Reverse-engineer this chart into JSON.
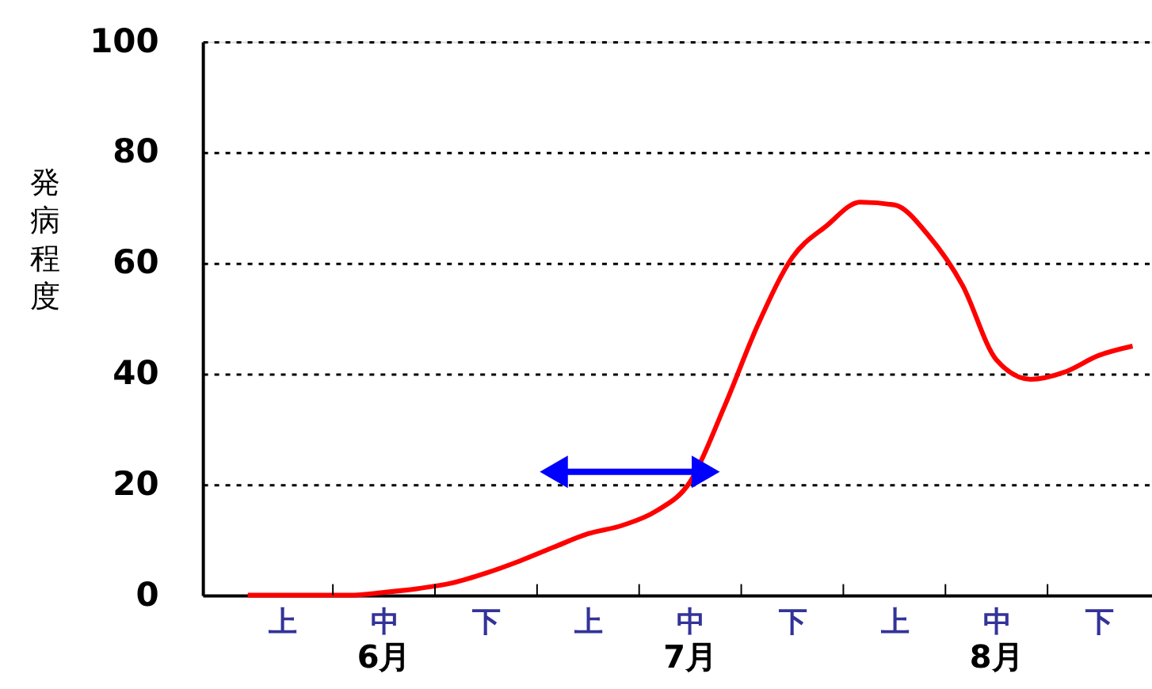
{
  "chart_data": {
    "type": "line",
    "ylabel": "発病程度",
    "categories": [
      null,
      "上",
      null,
      null,
      "中",
      null,
      null,
      "下",
      null,
      null,
      "上",
      null,
      null,
      "中",
      null,
      null,
      "下",
      null,
      null,
      "上",
      null,
      null,
      "中",
      null,
      null,
      "下",
      null
    ],
    "annotations": [
      "6月",
      "7月",
      "8月"
    ],
    "ylim": [
      0,
      100
    ],
    "yticks": [
      0,
      20,
      40,
      60,
      80,
      100
    ],
    "grid": "y",
    "line_style": "solid",
    "marker": "none",
    "series": [
      {
        "color": "#ff0000",
        "values": [
          0,
          0,
          0,
          0,
          0.5,
          1.2,
          2.2,
          4,
          6.2,
          8.7,
          11.1,
          12.6,
          15.2,
          20.5,
          34,
          49,
          61,
          66.7,
          71,
          70.5,
          65,
          56,
          42.5,
          39,
          40.3,
          43.3,
          45
        ]
      }
    ]
  }
}
